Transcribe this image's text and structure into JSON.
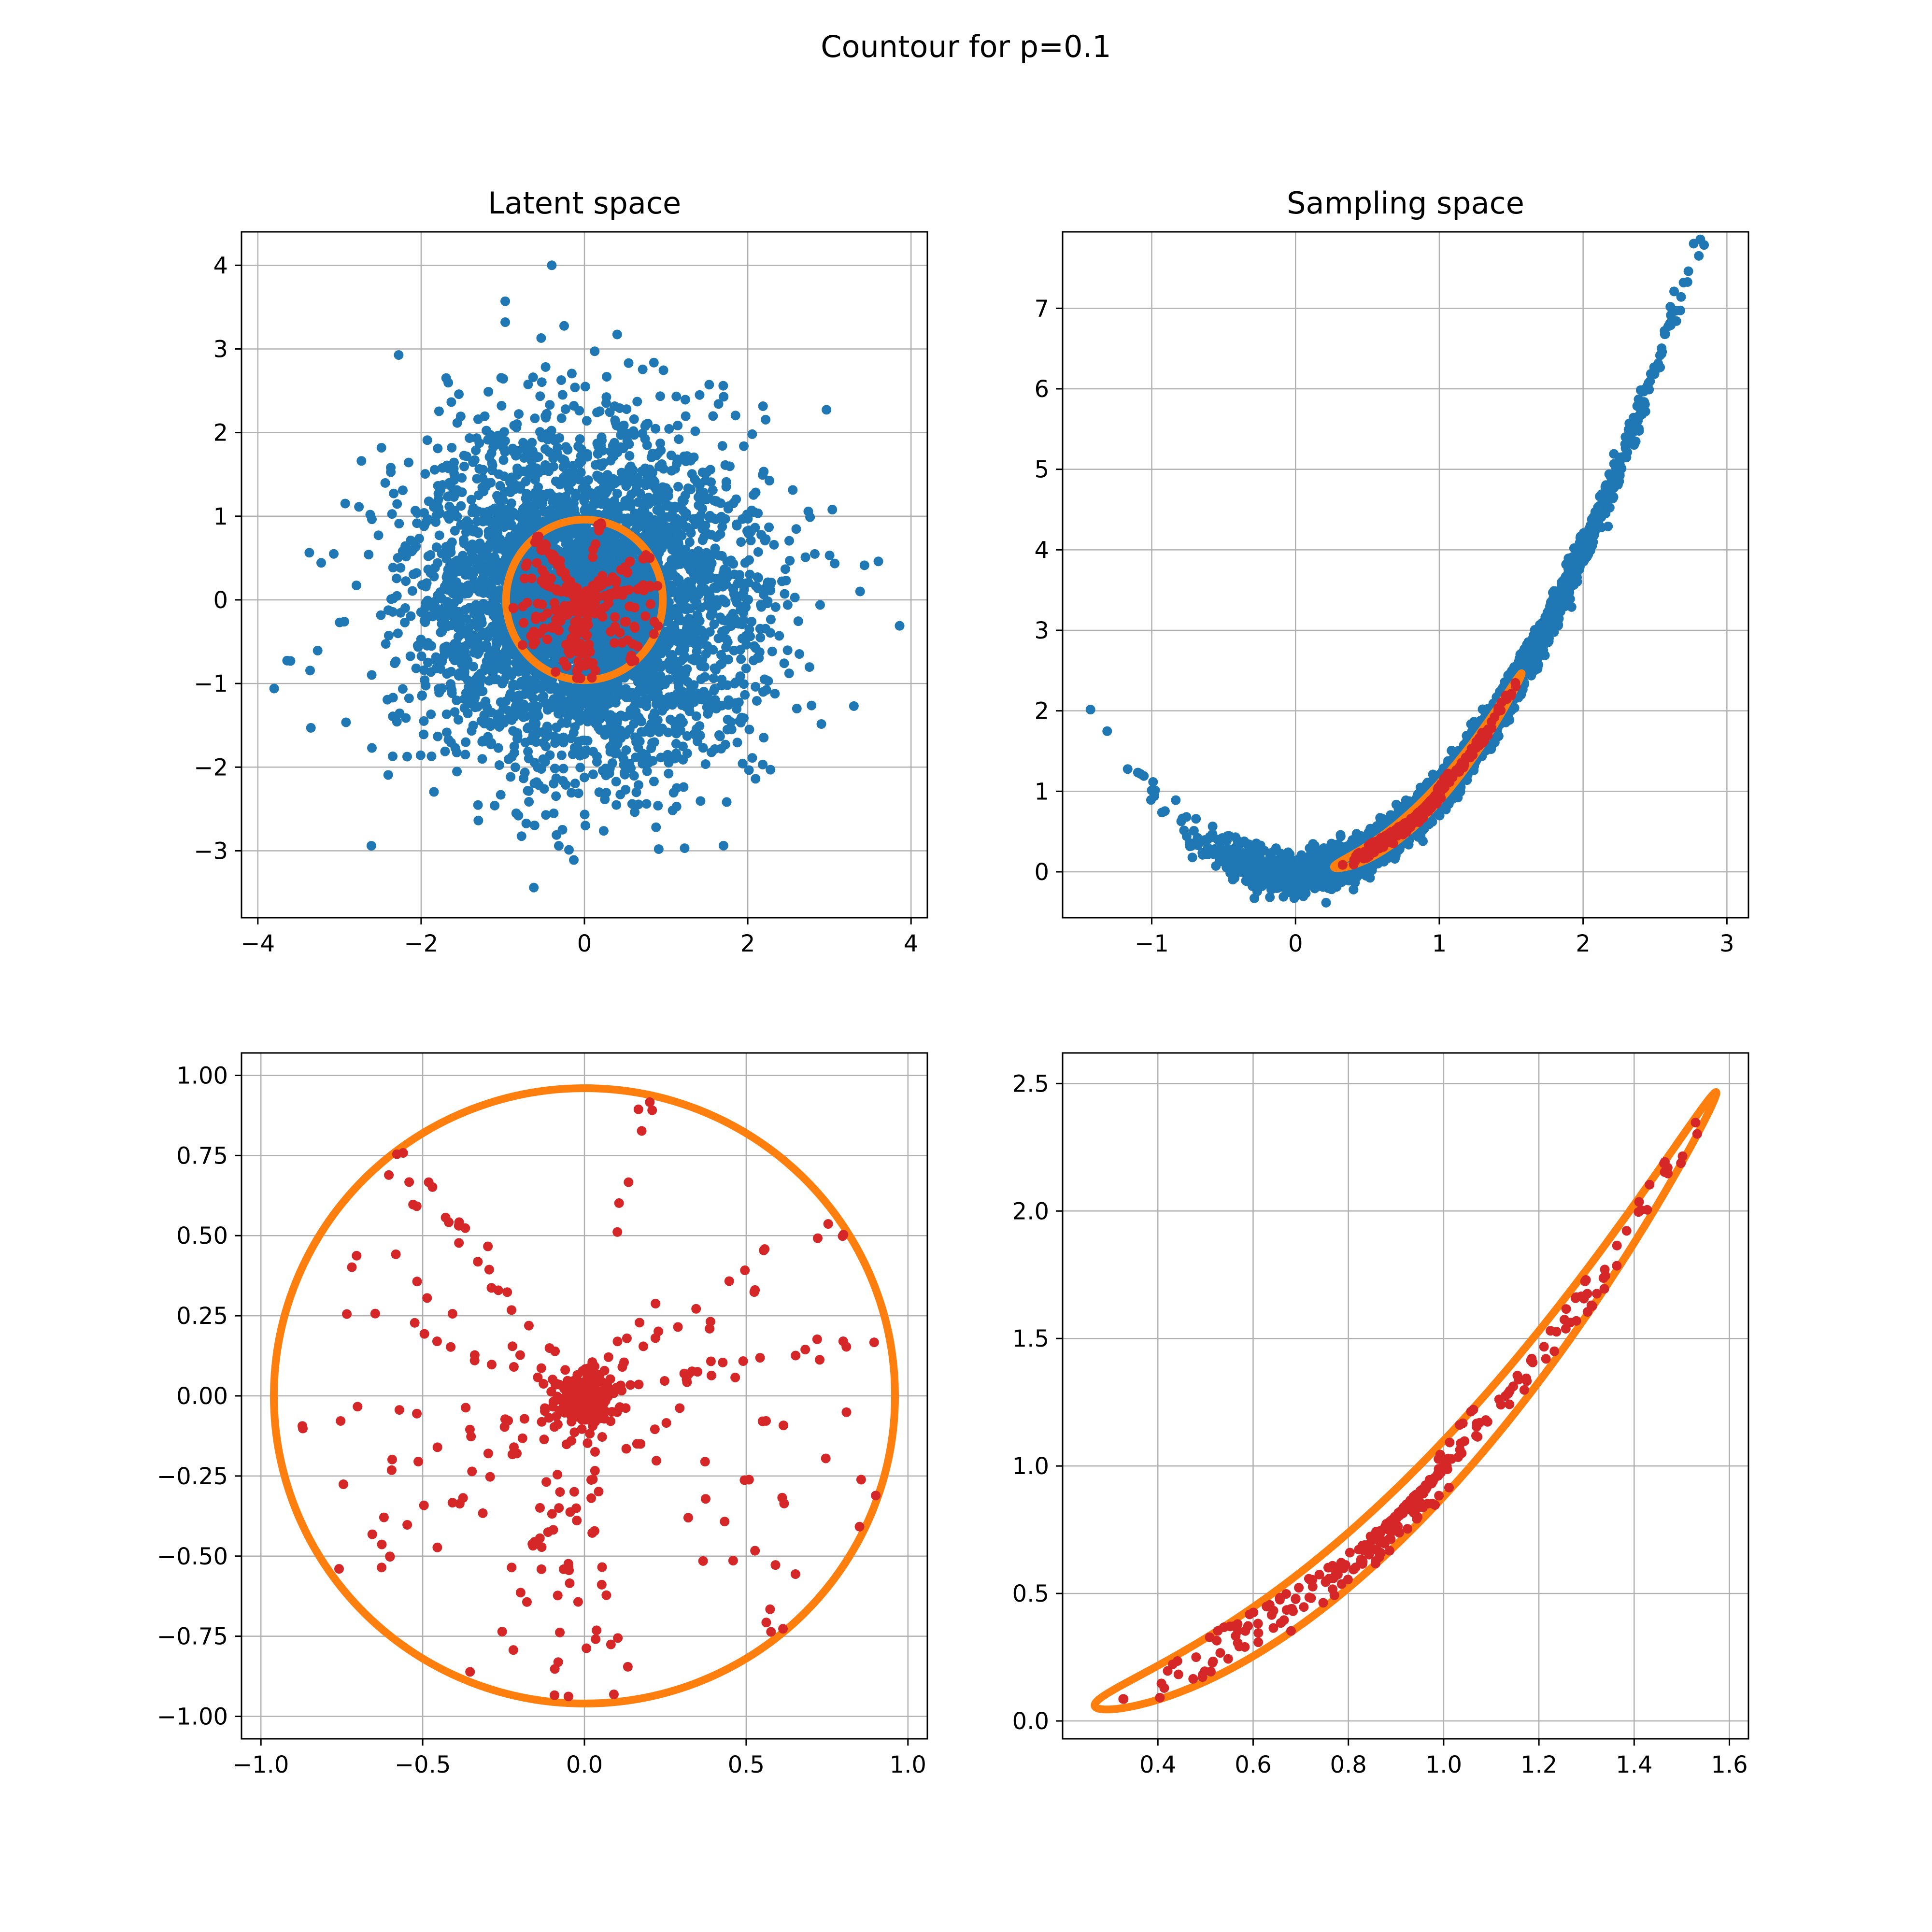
{
  "figure": {
    "suptitle": "Countour for p=0.1"
  },
  "colors": {
    "latent": "#1f77b4",
    "sample": "#d62728",
    "contour": "#ff7f0e",
    "grid": "#b0b0b0"
  },
  "chart_data": [
    {
      "id": "latent_full",
      "type": "scatter",
      "title": "Latent space",
      "xlabel": "",
      "ylabel": "",
      "xlim": [
        -4.2,
        4.2
      ],
      "ylim": [
        -3.8,
        4.4
      ],
      "xticks": [
        -4,
        -2,
        0,
        2,
        4
      ],
      "xtick_labels": [
        "−4",
        "−2",
        "0",
        "2",
        "4"
      ],
      "yticks": [
        -3,
        -2,
        -1,
        0,
        1,
        2,
        3,
        4
      ],
      "ytick_labels": [
        "−3",
        "−2",
        "−1",
        "0",
        "1",
        "2",
        "3",
        "4"
      ],
      "grid": true,
      "series": [
        {
          "role": "latent_cloud",
          "color_key": "latent",
          "kind": "gaussian_cloud",
          "count": 4000,
          "sigma": 1.0,
          "outliers": [
            [
              -0.4,
              4.0
            ],
            [
              -0.97,
              3.57
            ],
            [
              -0.97,
              3.32
            ],
            [
              -0.53,
              3.13
            ],
            [
              -3.8,
              -1.06
            ],
            [
              3.86,
              -0.31
            ],
            [
              3.6,
              0.46
            ],
            [
              -3.6,
              -0.73
            ],
            [
              3.3,
              -1.27
            ],
            [
              -0.62,
              -3.44
            ],
            [
              -0.13,
              -3.11
            ],
            [
              0.91,
              -2.98
            ],
            [
              -3.35,
              -1.53
            ],
            [
              -3.07,
              0.55
            ]
          ]
        },
        {
          "role": "contour",
          "color_key": "contour",
          "kind": "circle",
          "center": [
            0,
            0
          ],
          "radius": 0.96
        },
        {
          "role": "samples",
          "color_key": "sample",
          "kind": "radial_samples",
          "radius": 0.96
        }
      ]
    },
    {
      "id": "sampling_full",
      "type": "scatter",
      "title": "Sampling space",
      "xlabel": "",
      "ylabel": "",
      "xlim": [
        -1.62,
        3.15
      ],
      "ylim": [
        -0.57,
        7.95
      ],
      "xticks": [
        -1,
        0,
        1,
        2,
        3
      ],
      "xtick_labels": [
        "−1",
        "0",
        "1",
        "2",
        "3"
      ],
      "yticks": [
        0,
        1,
        2,
        3,
        4,
        5,
        6,
        7
      ],
      "ytick_labels": [
        "0",
        "1",
        "2",
        "3",
        "4",
        "5",
        "6",
        "7"
      ],
      "grid": true,
      "series": [
        {
          "role": "latent_cloud",
          "color_key": "latent",
          "kind": "parabola_cloud",
          "transform": "y = x^2 + noise",
          "x_range": [
            -1.45,
            2.92
          ]
        },
        {
          "role": "contour",
          "color_key": "contour",
          "kind": "transformed_circle",
          "radius": 0.96
        },
        {
          "role": "samples",
          "color_key": "sample",
          "kind": "transformed_samples"
        }
      ]
    },
    {
      "id": "latent_zoom",
      "type": "scatter",
      "title": "",
      "xlabel": "",
      "ylabel": "",
      "xlim": [
        -1.06,
        1.06
      ],
      "ylim": [
        -1.07,
        1.07
      ],
      "xticks": [
        -1.0,
        -0.5,
        0.0,
        0.5,
        1.0
      ],
      "xtick_labels": [
        "−1.0",
        "−0.5",
        "0.0",
        "0.5",
        "1.0"
      ],
      "yticks": [
        -1.0,
        -0.75,
        -0.5,
        -0.25,
        0.0,
        0.25,
        0.5,
        0.75,
        1.0
      ],
      "ytick_labels": [
        "−1.00",
        "−0.75",
        "−0.50",
        "−0.25",
        "0.00",
        "0.25",
        "0.50",
        "0.75",
        "1.00"
      ],
      "grid": true,
      "series": [
        {
          "role": "contour",
          "color_key": "contour",
          "kind": "circle",
          "center": [
            0,
            0
          ],
          "radius": 0.96
        },
        {
          "role": "samples",
          "color_key": "sample",
          "kind": "radial_samples",
          "radius": 0.96
        }
      ]
    },
    {
      "id": "sampling_zoom",
      "type": "scatter",
      "title": "",
      "xlabel": "",
      "ylabel": "",
      "xlim": [
        0.2,
        1.64
      ],
      "ylim": [
        -0.07,
        2.62
      ],
      "xticks": [
        0.4,
        0.6,
        0.8,
        1.0,
        1.2,
        1.4,
        1.6
      ],
      "xtick_labels": [
        "0.4",
        "0.6",
        "0.8",
        "1.0",
        "1.2",
        "1.4",
        "1.6"
      ],
      "yticks": [
        0.0,
        0.5,
        1.0,
        1.5,
        2.0,
        2.5
      ],
      "ytick_labels": [
        "0.0",
        "0.5",
        "1.0",
        "1.5",
        "2.0",
        "2.5"
      ],
      "grid": true,
      "series": [
        {
          "role": "contour",
          "color_key": "contour",
          "kind": "transformed_circle",
          "radius": 0.96
        },
        {
          "role": "samples",
          "color_key": "sample",
          "kind": "transformed_samples"
        }
      ]
    }
  ]
}
